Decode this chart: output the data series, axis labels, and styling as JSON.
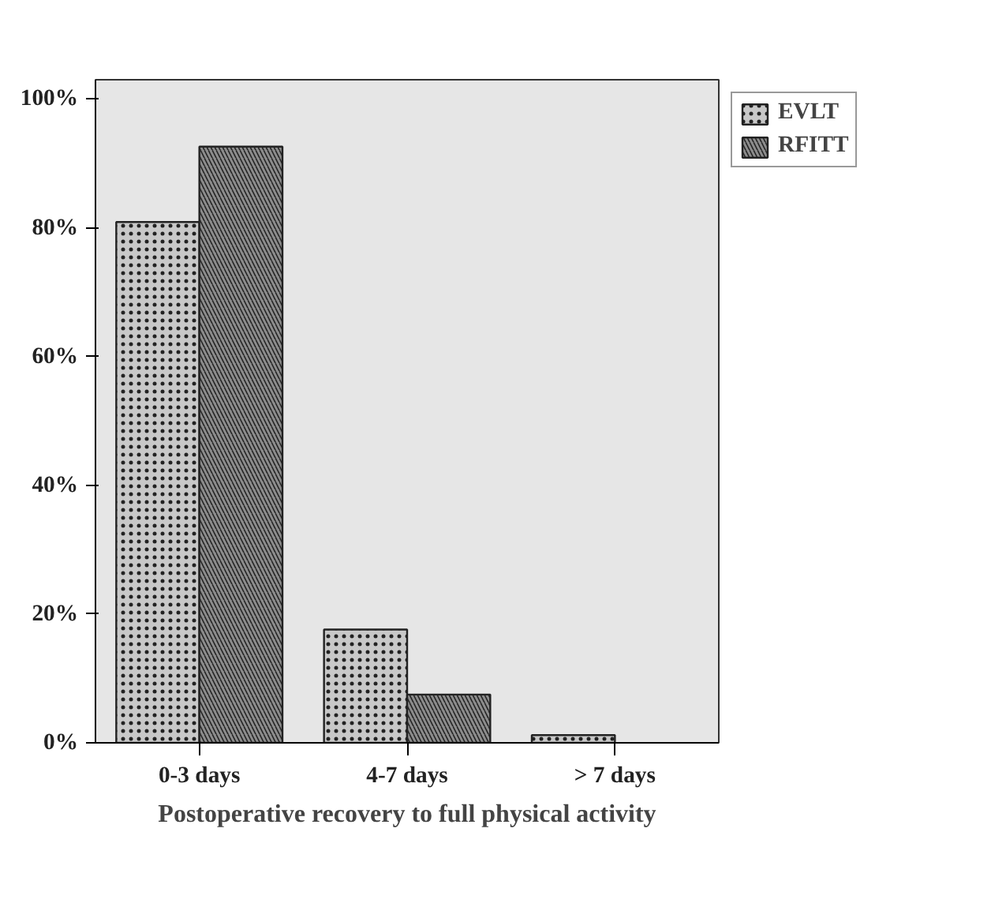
{
  "chart_data": {
    "type": "bar",
    "xlabel": "Postoperative recovery to full physical activity",
    "categories": [
      "0-3 days",
      "4-7 days",
      "> 7 days"
    ],
    "series": [
      {
        "name": "EVLT",
        "color": "#c8c8c8",
        "values": [
          80.9,
          17.6,
          1.2
        ]
      },
      {
        "name": "RFITT",
        "color": "#8c8c8c",
        "values": [
          92.6,
          7.5,
          null
        ]
      }
    ],
    "ylim": [
      0,
      103
    ],
    "yticks": [
      {
        "value": 0,
        "label": "0%"
      },
      {
        "value": 20,
        "label": "20%"
      },
      {
        "value": 40,
        "label": "40%"
      },
      {
        "value": 60,
        "label": "60%"
      },
      {
        "value": 80,
        "label": "80%"
      },
      {
        "value": 100,
        "label": "100%"
      }
    ],
    "grid": false,
    "legend": "top right"
  }
}
